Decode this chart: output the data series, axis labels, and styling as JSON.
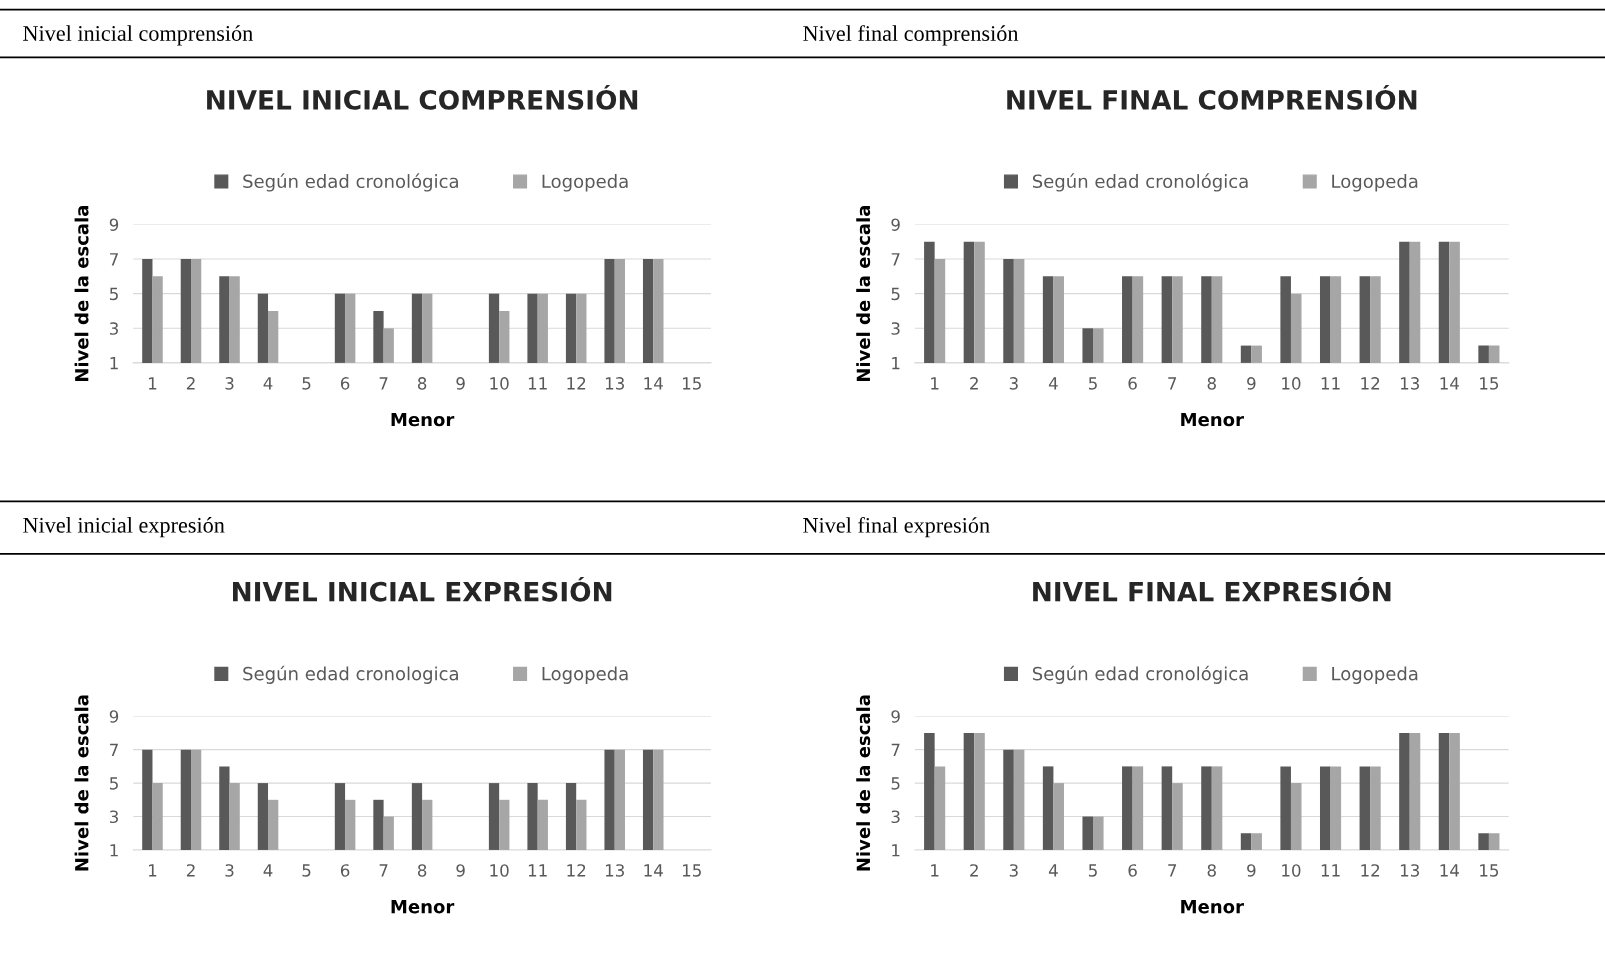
{
  "chart_data": [
    {
      "type": "bar",
      "title": "NIVEL INICIAL COMPRENSIÓN",
      "annotations": [
        "Nivel inicial comprensión"
      ],
      "xlabel": "Menor",
      "ylabel": "Nivel de la escala",
      "categories": [
        "1",
        "2",
        "3",
        "4",
        "5",
        "6",
        "7",
        "8",
        "9",
        "10",
        "11",
        "12",
        "13",
        "14",
        "15"
      ],
      "ylim": [
        1,
        9
      ],
      "yticks": [
        1,
        3,
        5,
        7,
        9
      ],
      "grid": "y",
      "legend": "top",
      "series": [
        {
          "name": "Según edad cronológica",
          "color": "#595959",
          "values": [
            7,
            7,
            6,
            5,
            null,
            5,
            4,
            5,
            null,
            5,
            5,
            5,
            7,
            7,
            null
          ]
        },
        {
          "name": "Logopeda",
          "color": "#a6a6a6",
          "values": [
            6,
            7,
            6,
            4,
            null,
            5,
            3,
            5,
            null,
            4,
            5,
            5,
            7,
            7,
            null
          ]
        }
      ]
    },
    {
      "type": "bar",
      "title": "NIVEL FINAL COMPRENSIÓN",
      "annotations": [
        "Nivel final comprensión"
      ],
      "xlabel": "Menor",
      "ylabel": "Nivel de la escala",
      "categories": [
        "1",
        "2",
        "3",
        "4",
        "5",
        "6",
        "7",
        "8",
        "9",
        "10",
        "11",
        "12",
        "13",
        "14",
        "15"
      ],
      "ylim": [
        1,
        9
      ],
      "yticks": [
        1,
        3,
        5,
        7,
        9
      ],
      "grid": "y",
      "legend": "top",
      "series": [
        {
          "name": "Según edad cronológica",
          "color": "#595959",
          "values": [
            8,
            8,
            7,
            6,
            3,
            6,
            6,
            6,
            2,
            6,
            6,
            6,
            8,
            8,
            2
          ]
        },
        {
          "name": "Logopeda",
          "color": "#a6a6a6",
          "values": [
            7,
            8,
            7,
            6,
            3,
            6,
            6,
            6,
            2,
            5,
            6,
            6,
            8,
            8,
            2
          ]
        }
      ]
    },
    {
      "type": "bar",
      "title": "NIVEL INICIAL EXPRESIÓN",
      "annotations": [
        "Nivel inicial expresión"
      ],
      "xlabel": "Menor",
      "ylabel": "Nivel de la escala",
      "categories": [
        "1",
        "2",
        "3",
        "4",
        "5",
        "6",
        "7",
        "8",
        "9",
        "10",
        "11",
        "12",
        "13",
        "14",
        "15"
      ],
      "ylim": [
        1,
        9
      ],
      "yticks": [
        1,
        3,
        5,
        7,
        9
      ],
      "grid": "y",
      "legend": "top",
      "series": [
        {
          "name": "Según edad cronologica",
          "color": "#595959",
          "values": [
            7,
            7,
            6,
            5,
            null,
            5,
            4,
            5,
            null,
            5,
            5,
            5,
            7,
            7,
            null
          ]
        },
        {
          "name": "Logopeda",
          "color": "#a6a6a6",
          "values": [
            5,
            7,
            5,
            4,
            null,
            4,
            3,
            4,
            null,
            4,
            4,
            4,
            7,
            7,
            null
          ]
        }
      ]
    },
    {
      "type": "bar",
      "title": "NIVEL FINAL EXPRESIÓN",
      "annotations": [
        "Nivel final expresión"
      ],
      "xlabel": "Menor",
      "ylabel": "Nivel de la escala",
      "categories": [
        "1",
        "2",
        "3",
        "4",
        "5",
        "6",
        "7",
        "8",
        "9",
        "10",
        "11",
        "12",
        "13",
        "14",
        "15"
      ],
      "ylim": [
        1,
        9
      ],
      "yticks": [
        1,
        3,
        5,
        7,
        9
      ],
      "grid": "y",
      "legend": "top",
      "series": [
        {
          "name": "Según edad cronológica",
          "color": "#595959",
          "values": [
            8,
            8,
            7,
            6,
            3,
            6,
            6,
            6,
            2,
            6,
            6,
            6,
            8,
            8,
            2
          ]
        },
        {
          "name": "Logopeda",
          "color": "#a6a6a6",
          "values": [
            6,
            8,
            7,
            5,
            3,
            6,
            5,
            6,
            2,
            5,
            6,
            6,
            8,
            8,
            2
          ]
        }
      ]
    }
  ]
}
